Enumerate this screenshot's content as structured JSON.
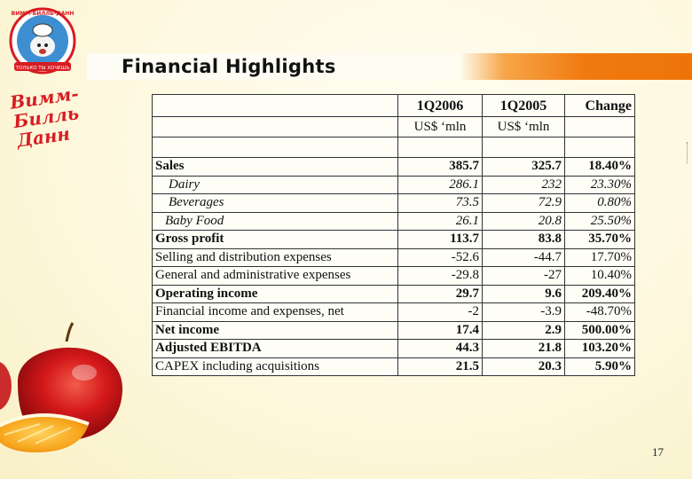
{
  "title": "Financial Highlights",
  "logo": {
    "arc_text": "ВИММ-БИЛЛЬ-ДАНН",
    "ribbon_text": "ТОЛЬКО ТЫ ХОЧЕШЬ",
    "script_text": [
      "Вимм-",
      "Билль-",
      "Данн"
    ]
  },
  "table": {
    "headers": [
      "",
      "1Q2006",
      "1Q2005",
      "Change"
    ],
    "units": [
      "",
      "US$ ‘mln",
      "US$ ‘mln",
      ""
    ],
    "rows": [
      {
        "label": "Sales",
        "a": "385.7",
        "b": "325.7",
        "c": "18.40%"
      },
      {
        "label": "Dairy",
        "a": "286.1",
        "b": "232",
        "c": "23.30%"
      },
      {
        "label": "Beverages",
        "a": "73.5",
        "b": "72.9",
        "c": "0.80%"
      },
      {
        "label": "Baby Food",
        "a": "26.1",
        "b": "20.8",
        "c": "25.50%"
      },
      {
        "label": "Gross profit",
        "a": "113.7",
        "b": "83.8",
        "c": "35.70%"
      },
      {
        "label": "Selling and distribution expenses",
        "a": "-52.6",
        "b": "-44.7",
        "c": "17.70%"
      },
      {
        "label": "General and administrative expenses",
        "a": "-29.8",
        "b": "-27",
        "c": "10.40%"
      },
      {
        "label": "Operating income",
        "a": "29.7",
        "b": "9.6",
        "c": "209.40%"
      },
      {
        "label": "Financial income and expenses, net",
        "a": "-2",
        "b": "-3.9",
        "c": "-48.70%"
      },
      {
        "label": "Net income",
        "a": "17.4",
        "b": "2.9",
        "c": "500.00%"
      },
      {
        "label": "Adjusted EBITDA",
        "a": "44.3",
        "b": "21.8",
        "c": "103.20%"
      },
      {
        "label": "CAPEX including acquisitions",
        "a": "21.5",
        "b": "20.3",
        "c": "5.90%"
      }
    ]
  },
  "page_number": "17",
  "colors": {
    "banner_orange": "#f07a10",
    "brand_red": "#d81c22",
    "background": "#fdf9e2"
  }
}
